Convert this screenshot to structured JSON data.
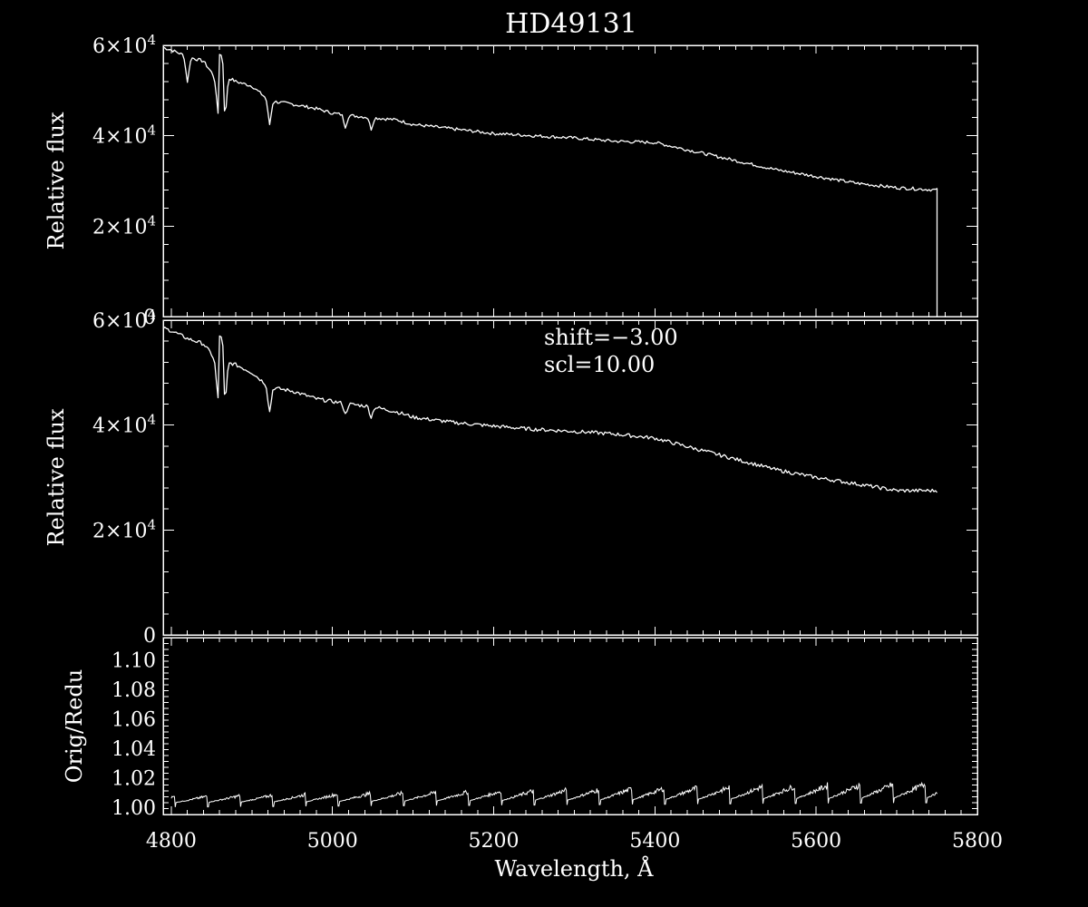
{
  "chart_data": [
    {
      "type": "line",
      "title": "HD49131",
      "ylabel": "Relative flux",
      "xlim": [
        4790,
        5800
      ],
      "ylim": [
        0,
        60000
      ],
      "xticks": [
        4800,
        5000,
        5200,
        5400,
        5600,
        5800
      ],
      "yticks": [
        0,
        20000,
        40000,
        60000
      ],
      "ytick_labels": [
        {
          "mant": "0",
          "exp": ""
        },
        {
          "mant": "2×10",
          "exp": "4"
        },
        {
          "mant": "4×10",
          "exp": "4"
        },
        {
          "mant": "6×10",
          "exp": "4"
        }
      ],
      "series": [
        {
          "x": [
            4790,
            4800,
            4820,
            4840,
            4850,
            4860,
            4870,
            4880,
            4900,
            4920,
            4930,
            4950,
            4980,
            5000,
            5020,
            5050,
            5080,
            5100,
            5150,
            5200,
            5250,
            5300,
            5350,
            5400,
            5450,
            5500,
            5550,
            5600,
            5650,
            5700,
            5750
          ],
          "y": [
            59500,
            59000,
            57500,
            56500,
            54000,
            51000,
            53000,
            52000,
            51000,
            48000,
            47500,
            47000,
            46000,
            45000,
            44500,
            44000,
            43500,
            42500,
            41500,
            40500,
            40000,
            39500,
            38800,
            38500,
            36500,
            34500,
            32500,
            31000,
            29500,
            28500,
            28000
          ]
        }
      ],
      "lines": [
        {
          "x": 4858,
          "depth": 45000
        },
        {
          "x": 4861,
          "depth": 58000
        },
        {
          "x": 4864,
          "depth": 58000
        },
        {
          "x": 4867,
          "depth": 45000
        },
        {
          "x": 4922,
          "depth": 42500
        },
        {
          "x": 5016,
          "depth": 42000
        },
        {
          "x": 5048,
          "depth": 41500
        },
        {
          "x": 4820,
          "depth": 52000
        }
      ],
      "cutoff": {
        "x": 5750,
        "to": 0
      }
    },
    {
      "type": "line",
      "ylabel": "Relative flux",
      "xlim": [
        4790,
        5800
      ],
      "ylim": [
        0,
        60000
      ],
      "xticks": [
        4800,
        5000,
        5200,
        5400,
        5600,
        5800
      ],
      "yticks": [
        0,
        20000,
        40000,
        60000
      ],
      "ytick_labels": [
        {
          "mant": "0",
          "exp": ""
        },
        {
          "mant": "2×10",
          "exp": "4"
        },
        {
          "mant": "4×10",
          "exp": "4"
        },
        {
          "mant": "6×10",
          "exp": "4"
        }
      ],
      "annotations": [
        "shift=−3.00",
        "scl=10.00"
      ],
      "series": [
        {
          "x": [
            4790,
            4800,
            4820,
            4840,
            4850,
            4860,
            4870,
            4880,
            4900,
            4920,
            4930,
            4950,
            4980,
            5000,
            5020,
            5050,
            5080,
            5100,
            5150,
            5200,
            5250,
            5300,
            5350,
            5400,
            5450,
            5500,
            5550,
            5600,
            5650,
            5700,
            5750
          ],
          "y": [
            58500,
            58000,
            56500,
            55500,
            53500,
            50500,
            52000,
            51500,
            50000,
            47500,
            47000,
            46500,
            45000,
            44500,
            44000,
            43500,
            42500,
            41500,
            40500,
            39800,
            39200,
            38800,
            38300,
            37500,
            35500,
            33500,
            31500,
            30000,
            28800,
            27500,
            27500
          ]
        }
      ],
      "lines": [
        {
          "x": 4858,
          "depth": 45000
        },
        {
          "x": 4861,
          "depth": 57000
        },
        {
          "x": 4864,
          "depth": 57000
        },
        {
          "x": 4867,
          "depth": 45000
        },
        {
          "x": 4922,
          "depth": 42500
        },
        {
          "x": 5016,
          "depth": 42000
        },
        {
          "x": 5048,
          "depth": 41500
        }
      ]
    },
    {
      "type": "line",
      "ylabel": "Orig/Redu",
      "xlabel": "Wavelength, Å",
      "xlim": [
        4790,
        5800
      ],
      "ylim": [
        0.995,
        1.115
      ],
      "xticks": [
        4800,
        5000,
        5200,
        5400,
        5600,
        5800
      ],
      "yticks": [
        1.0,
        1.02,
        1.04,
        1.06,
        1.08,
        1.1
      ],
      "ytick_labels": [
        "1.00",
        "1.02",
        "1.04",
        "1.06",
        "1.08",
        "1.10"
      ],
      "sawtooth": {
        "start": 4800,
        "end": 5750,
        "period": 40.5,
        "base_start": 1.003,
        "base_end": 1.006,
        "amp_start": 0.004,
        "amp_end": 0.01,
        "first_x": 4845
      }
    }
  ]
}
